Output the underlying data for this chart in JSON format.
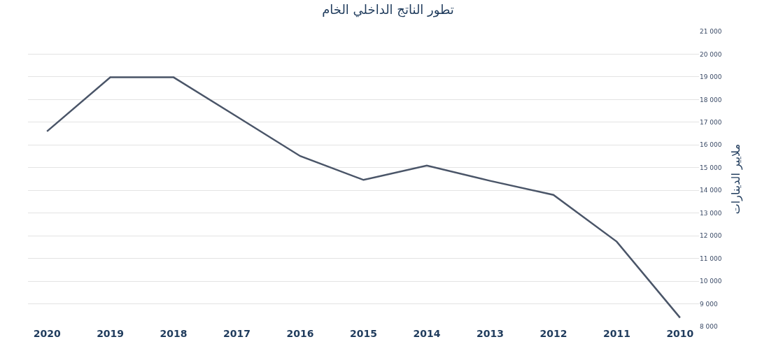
{
  "chart_data": {
    "type": "line",
    "title": "تطور الناتج الداخلي الخام",
    "ylabel": "ملايير الدينارات",
    "categories": [
      "2020",
      "2019",
      "2018",
      "2017",
      "2016",
      "2015",
      "2014",
      "2013",
      "2012",
      "2011",
      "2010"
    ],
    "series": [
      {
        "color": "#4a5568",
        "values": [
          16600,
          18980,
          18980,
          17250,
          15510,
          14460,
          15090,
          14420,
          13800,
          11740,
          8390
        ]
      }
    ],
    "ylim": [
      8000,
      21000
    ],
    "yticks": [
      {
        "value": 8000,
        "label": "8 000"
      },
      {
        "value": 9000,
        "label": "9 000"
      },
      {
        "value": 10000,
        "label": "10 000"
      },
      {
        "value": 11000,
        "label": "11 000"
      },
      {
        "value": 12000,
        "label": "12 000"
      },
      {
        "value": 13000,
        "label": "13 000"
      },
      {
        "value": 14000,
        "label": "14 000"
      },
      {
        "value": 15000,
        "label": "15 000"
      },
      {
        "value": 16000,
        "label": "16 000"
      },
      {
        "value": 17000,
        "label": "17 000"
      },
      {
        "value": 18000,
        "label": "18 000"
      },
      {
        "value": 19000,
        "label": "19 000"
      },
      {
        "value": 20000,
        "label": "20 000"
      },
      {
        "value": 21000,
        "label": "21 000"
      }
    ],
    "grid": "y",
    "marker": "none",
    "line_style": "solid"
  }
}
